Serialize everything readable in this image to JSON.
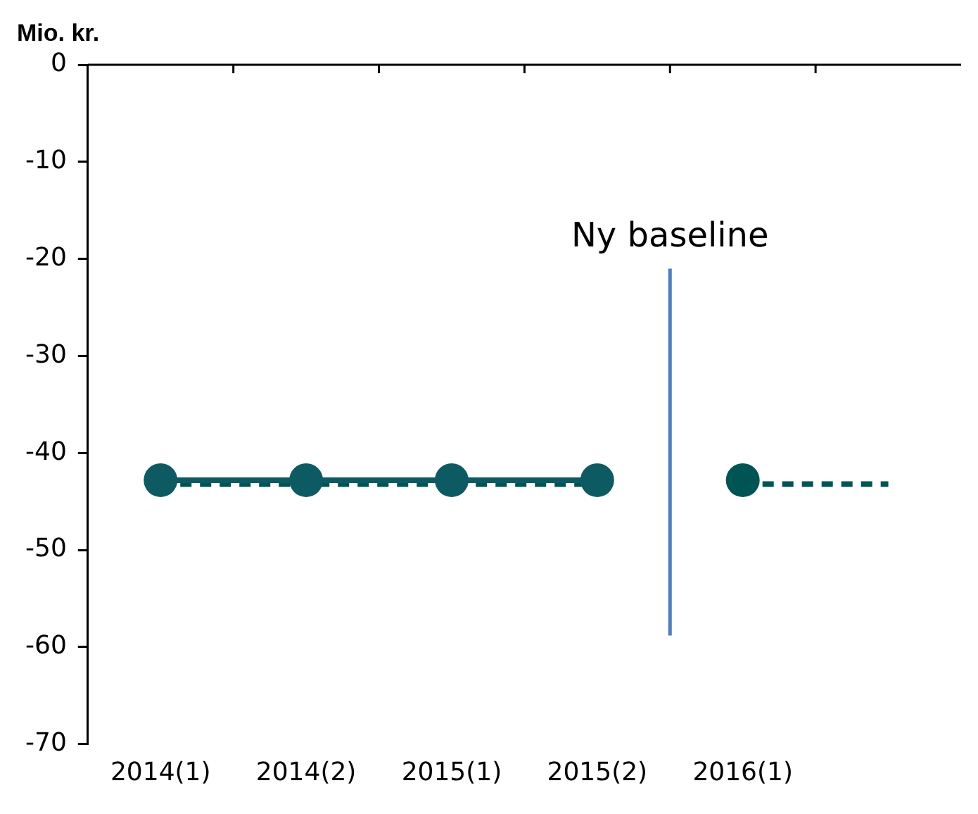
{
  "chart_data": {
    "type": "line",
    "ylabel": "Mio. kr.",
    "categories": [
      "2014(1)",
      "2014(2)",
      "2015(1)",
      "2015(2)",
      "2016(1)",
      null
    ],
    "series": [
      {
        "color": "#0e5a62",
        "values": [
          -42.8,
          -42.8,
          -42.8,
          -42.8,
          null,
          null
        ],
        "marker": "circle",
        "line_style": "solid"
      },
      {
        "type": "scatter",
        "color": "#005454",
        "values": [
          null,
          null,
          null,
          null,
          -42.8,
          null
        ],
        "marker": "circle"
      },
      {
        "type": "line",
        "color": "#005454",
        "values": [
          -43.2,
          -43.2,
          -43.2,
          -43.2,
          null,
          null
        ],
        "marker": "none",
        "line_style": "dashed"
      },
      {
        "type": "line",
        "color": "#005454",
        "values": [
          null,
          null,
          null,
          null,
          -43.2,
          -43.2
        ],
        "marker": "none",
        "line_style": "dashed"
      }
    ],
    "ylim": [
      -70,
      0
    ],
    "yticks": [
      0,
      -10,
      -20,
      -30,
      -40,
      -50,
      -60,
      -70
    ],
    "annotations": [
      "Ny baseline"
    ],
    "grid": false,
    "legend": false
  }
}
